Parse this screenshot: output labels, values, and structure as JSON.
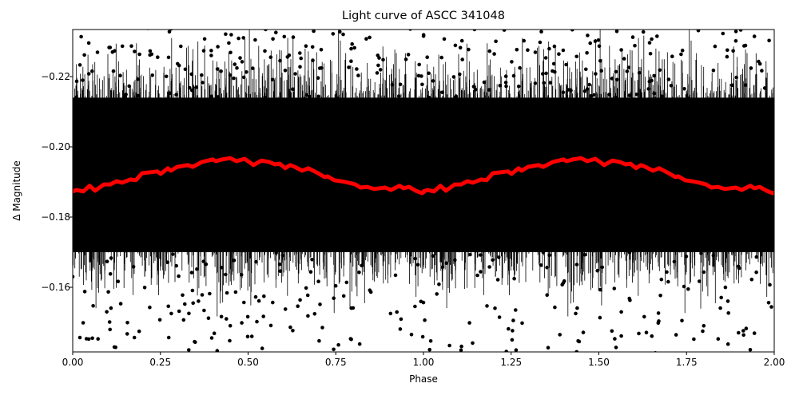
{
  "chart_data": {
    "type": "scatter",
    "title": "Light curve of ASCC 341048",
    "xlabel": "Phase",
    "ylabel": "Δ Magnitude",
    "xlim": [
      0.0,
      2.0
    ],
    "ylim": [
      -0.1416,
      -0.2334
    ],
    "y_inverted": true,
    "grid": false,
    "legend": null,
    "x_ticks": [
      "0.00",
      "0.25",
      "0.50",
      "0.75",
      "1.00",
      "1.25",
      "1.50",
      "1.75",
      "2.00"
    ],
    "x_tick_values": [
      0.0,
      0.25,
      0.5,
      0.75,
      1.0,
      1.25,
      1.5,
      1.75,
      2.0
    ],
    "y_ticks": [
      "−0.22",
      "−0.20",
      "−0.18",
      "−0.16"
    ],
    "y_tick_values": [
      -0.22,
      -0.2,
      -0.18,
      -0.16
    ],
    "series": [
      {
        "name": "observations",
        "style": "black points with error bars",
        "color": "#000000",
        "description": "dense noisy photometry, ~-0.23 to -0.14 spread, phase-folded and repeated over 2 cycles",
        "center": -0.192,
        "scatter_sigma": 0.012
      },
      {
        "name": "binned curve",
        "style": "thick red line",
        "color": "#ff0000",
        "repeat_period": 1.0,
        "phase": [
          0.0,
          0.011,
          0.03,
          0.048,
          0.064,
          0.089,
          0.107,
          0.125,
          0.141,
          0.164,
          0.18,
          0.198,
          0.216,
          0.241,
          0.251,
          0.271,
          0.28,
          0.298,
          0.328,
          0.342,
          0.369,
          0.399,
          0.408,
          0.426,
          0.449,
          0.467,
          0.49,
          0.506,
          0.515,
          0.538,
          0.56,
          0.576,
          0.59,
          0.606,
          0.62,
          0.633,
          0.654,
          0.672,
          0.699,
          0.718,
          0.727,
          0.745,
          0.765,
          0.786,
          0.806,
          0.82,
          0.84,
          0.859,
          0.891,
          0.907,
          0.932,
          0.943,
          0.959,
          0.978,
          0.996,
          1.0
        ],
        "magnitude": [
          -0.1873,
          -0.1877,
          -0.1873,
          -0.1889,
          -0.1875,
          -0.1893,
          -0.1893,
          -0.1902,
          -0.1898,
          -0.1907,
          -0.1905,
          -0.1925,
          -0.1927,
          -0.193,
          -0.1923,
          -0.1939,
          -0.1932,
          -0.1943,
          -0.1948,
          -0.1943,
          -0.1957,
          -0.1964,
          -0.1959,
          -0.1964,
          -0.1968,
          -0.1959,
          -0.1966,
          -0.1955,
          -0.1948,
          -0.1961,
          -0.1957,
          -0.195,
          -0.1952,
          -0.1939,
          -0.1948,
          -0.1943,
          -0.1932,
          -0.1939,
          -0.1925,
          -0.1914,
          -0.1916,
          -0.1905,
          -0.1902,
          -0.1898,
          -0.1893,
          -0.1884,
          -0.1886,
          -0.188,
          -0.1884,
          -0.1877,
          -0.1889,
          -0.1882,
          -0.1886,
          -0.1875,
          -0.1868,
          -0.187
        ]
      }
    ]
  }
}
